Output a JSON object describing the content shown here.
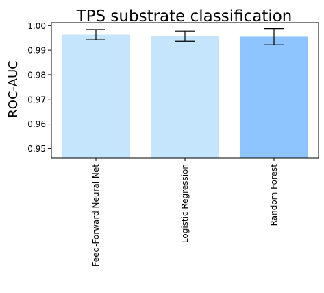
{
  "chart_data": {
    "type": "bar",
    "title": "TPS substrate classification",
    "xlabel": "",
    "ylabel": "ROC-AUC",
    "categories": [
      "Feed-Forward Neural Net",
      "Logistic Regression",
      "Random Forest"
    ],
    "values": [
      0.9963,
      0.9957,
      0.9955
    ],
    "errors": [
      0.0021,
      0.0021,
      0.0033
    ],
    "bar_colors": [
      "#c4e5fb",
      "#c4e5fb",
      "#8ec5ff"
    ],
    "ylim": [
      0.9462,
      1.0012
    ],
    "yticks": [
      0.95,
      0.96,
      0.97,
      0.98,
      0.99,
      1.0
    ],
    "ytick_labels": [
      "0.95",
      "0.96",
      "0.97",
      "0.98",
      "0.99",
      "1.00"
    ],
    "grid": false,
    "legend": "none"
  }
}
